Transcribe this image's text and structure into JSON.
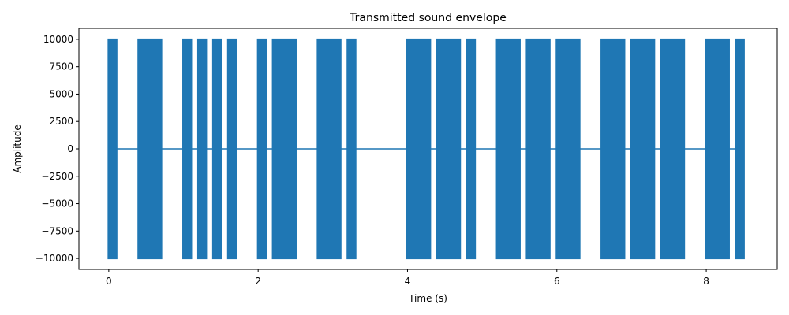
{
  "chart_data": {
    "type": "line",
    "title": "Transmitted sound envelope",
    "xlabel": "Time (s)",
    "ylabel": "Amplitude",
    "xlim": [
      -0.4,
      8.95
    ],
    "ylim": [
      -11000,
      11000
    ],
    "xticks": [
      0,
      2,
      4,
      6,
      8
    ],
    "yticks": [
      10000,
      7500,
      5000,
      2500,
      0,
      -2500,
      -5000,
      -7500,
      -10000
    ],
    "grid": false,
    "color": "#1f77b4",
    "baseline": {
      "x": [
        0,
        8.5
      ],
      "y": 0
    },
    "amplitude": 10000,
    "bursts": [
      {
        "start": 0.0,
        "end": 0.1
      },
      {
        "start": 0.4,
        "end": 0.7
      },
      {
        "start": 1.0,
        "end": 1.1
      },
      {
        "start": 1.2,
        "end": 1.3
      },
      {
        "start": 1.4,
        "end": 1.5
      },
      {
        "start": 1.6,
        "end": 1.7
      },
      {
        "start": 2.0,
        "end": 2.1
      },
      {
        "start": 2.2,
        "end": 2.5
      },
      {
        "start": 2.8,
        "end": 3.1
      },
      {
        "start": 3.2,
        "end": 3.3
      },
      {
        "start": 4.0,
        "end": 4.3
      },
      {
        "start": 4.4,
        "end": 4.7
      },
      {
        "start": 4.8,
        "end": 4.9
      },
      {
        "start": 5.2,
        "end": 5.5
      },
      {
        "start": 5.6,
        "end": 5.9
      },
      {
        "start": 6.0,
        "end": 6.3
      },
      {
        "start": 6.6,
        "end": 6.9
      },
      {
        "start": 7.0,
        "end": 7.3
      },
      {
        "start": 7.4,
        "end": 7.7
      },
      {
        "start": 8.0,
        "end": 8.3
      },
      {
        "start": 8.4,
        "end": 8.5
      }
    ]
  }
}
